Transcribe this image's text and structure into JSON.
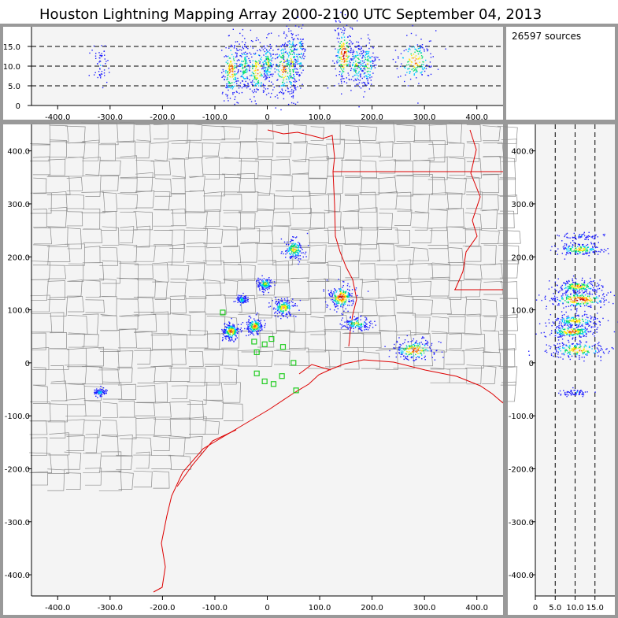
{
  "title": "Houston Lightning Mapping Array   2000-2100 UTC  September 04, 2013",
  "source_count_label": "26597 sources",
  "colors": {
    "frame": "#999999",
    "plot_bg": "#f4f4f4",
    "county": "#8c8c8c",
    "state_coast": "#dd0000",
    "station": "#22cc22",
    "dashed": "#000000",
    "density_ramp": [
      "#2020ff",
      "#00c8ff",
      "#00dd66",
      "#ffee00",
      "#ff6600",
      "#cc0000"
    ]
  },
  "chart_data": [
    {
      "type": "scatter",
      "panel": "altitude-vs-east-west",
      "xlim": [
        -450,
        450
      ],
      "ylim": [
        0,
        20
      ],
      "x_ticks": [
        "-400.0",
        "-300.0",
        "-200.0",
        "-100.0",
        "0",
        "100.0",
        "200.0",
        "300.0",
        "400.0"
      ],
      "y_ticks": [
        "0",
        "5.0",
        "10.0",
        "15.0"
      ],
      "reference_lines_y": [
        5,
        10,
        15
      ],
      "clusters": [
        {
          "x": -320,
          "z": 10.5,
          "spread_x": 8,
          "spread_z": 2.5,
          "intensity": 0.2
        },
        {
          "x": -70,
          "z": 9,
          "spread_x": 8,
          "spread_z": 4,
          "intensity": 0.9
        },
        {
          "x": -45,
          "z": 10,
          "spread_x": 6,
          "spread_z": 3,
          "intensity": 0.6
        },
        {
          "x": -20,
          "z": 9,
          "spread_x": 10,
          "spread_z": 3.5,
          "intensity": 0.8
        },
        {
          "x": 0,
          "z": 11,
          "spread_x": 6,
          "spread_z": 3,
          "intensity": 0.6
        },
        {
          "x": 30,
          "z": 9.5,
          "spread_x": 10,
          "spread_z": 4,
          "intensity": 0.8
        },
        {
          "x": 45,
          "z": 11,
          "spread_x": 6,
          "spread_z": 5,
          "intensity": 0.7
        },
        {
          "x": 60,
          "z": 13,
          "spread_x": 6,
          "spread_z": 4,
          "intensity": 0.4
        },
        {
          "x": 145,
          "z": 13,
          "spread_x": 9,
          "spread_z": 4,
          "intensity": 1.0
        },
        {
          "x": 170,
          "z": 10.5,
          "spread_x": 8,
          "spread_z": 3,
          "intensity": 0.6
        },
        {
          "x": 190,
          "z": 10.5,
          "spread_x": 8,
          "spread_z": 3,
          "intensity": 0.6
        },
        {
          "x": 280,
          "z": 11.5,
          "spread_x": 18,
          "spread_z": 3,
          "intensity": 0.8
        }
      ]
    },
    {
      "type": "scatter",
      "panel": "plan-view-map",
      "xlim": [
        -450,
        450
      ],
      "ylim": [
        -440,
        450
      ],
      "x_ticks": [
        "-400.0",
        "-300.0",
        "-200.0",
        "-100.0",
        "0",
        "100.0",
        "200.0",
        "300.0",
        "400.0"
      ],
      "y_ticks": [
        "400.0",
        "300.0",
        "200.0",
        "100.0",
        "0",
        "-100.0",
        "-200.0",
        "-300.0",
        "-400.0"
      ],
      "clusters": [
        {
          "x": -70,
          "y": 60,
          "spread_x": 8,
          "spread_y": 8,
          "intensity": 0.9
        },
        {
          "x": -50,
          "y": 120,
          "spread_x": 5,
          "spread_y": 4,
          "intensity": 0.4
        },
        {
          "x": -25,
          "y": 70,
          "spread_x": 8,
          "spread_y": 8,
          "intensity": 0.8
        },
        {
          "x": -5,
          "y": 150,
          "spread_x": 8,
          "spread_y": 6,
          "intensity": 0.6
        },
        {
          "x": 30,
          "y": 105,
          "spread_x": 10,
          "spread_y": 8,
          "intensity": 0.8
        },
        {
          "x": 50,
          "y": 215,
          "spread_x": 10,
          "spread_y": 10,
          "intensity": 0.7
        },
        {
          "x": 140,
          "y": 125,
          "spread_x": 12,
          "spread_y": 12,
          "intensity": 1.0
        },
        {
          "x": 170,
          "y": 75,
          "spread_x": 14,
          "spread_y": 6,
          "intensity": 0.6
        },
        {
          "x": 280,
          "y": 25,
          "spread_x": 22,
          "spread_y": 10,
          "intensity": 0.9
        },
        {
          "x": -320,
          "y": -55,
          "spread_x": 6,
          "spread_y": 4,
          "intensity": 0.3
        }
      ],
      "stations": [
        [
          -85,
          95
        ],
        [
          -25,
          40
        ],
        [
          -5,
          35
        ],
        [
          8,
          45
        ],
        [
          30,
          30
        ],
        [
          -20,
          20
        ],
        [
          50,
          0
        ],
        [
          -20,
          -20
        ],
        [
          28,
          -25
        ],
        [
          -5,
          -35
        ],
        [
          12,
          -40
        ],
        [
          55,
          -52
        ]
      ]
    },
    {
      "type": "scatter",
      "panel": "north-south-vs-altitude",
      "xlim": [
        0,
        20
      ],
      "ylim": [
        -440,
        450
      ],
      "x_ticks": [
        "0",
        "5.0",
        "10.0",
        "15.0"
      ],
      "y_ticks": [
        "400.0",
        "300.0",
        "200.0",
        "100.0",
        "0",
        "-100.0",
        "-200.0",
        "-300.0",
        "-400.0"
      ],
      "reference_lines_x": [
        5,
        10,
        15
      ],
      "clusters": [
        {
          "z": 11,
          "y": 215,
          "spread_z": 3,
          "spread_y": 6,
          "intensity": 0.7
        },
        {
          "z": 11,
          "y": 240,
          "spread_z": 3,
          "spread_y": 3,
          "intensity": 0.2
        },
        {
          "z": 10.5,
          "y": 145,
          "spread_z": 3,
          "spread_y": 6,
          "intensity": 0.8
        },
        {
          "z": 11,
          "y": 120,
          "spread_z": 4,
          "spread_y": 8,
          "intensity": 1.0
        },
        {
          "z": 10,
          "y": 80,
          "spread_z": 3,
          "spread_y": 6,
          "intensity": 0.7
        },
        {
          "z": 9,
          "y": 60,
          "spread_z": 3,
          "spread_y": 6,
          "intensity": 0.9
        },
        {
          "z": 10.5,
          "y": 25,
          "spread_z": 4,
          "spread_y": 8,
          "intensity": 0.8
        },
        {
          "z": 10,
          "y": -55,
          "spread_z": 2,
          "spread_y": 3,
          "intensity": 0.2
        }
      ]
    }
  ]
}
